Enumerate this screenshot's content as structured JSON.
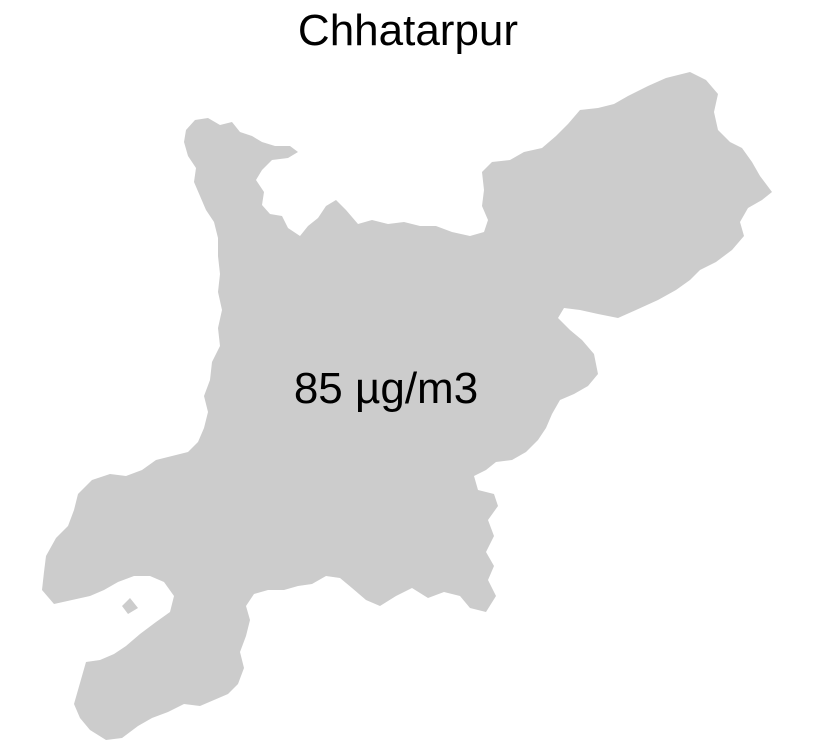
{
  "map": {
    "title": "Chhatarpur",
    "district": {
      "name": "Chhatarpur",
      "value_label": "85 µg/m3",
      "fill_color": "#cccccc"
    },
    "background_color": "#ffffff"
  }
}
